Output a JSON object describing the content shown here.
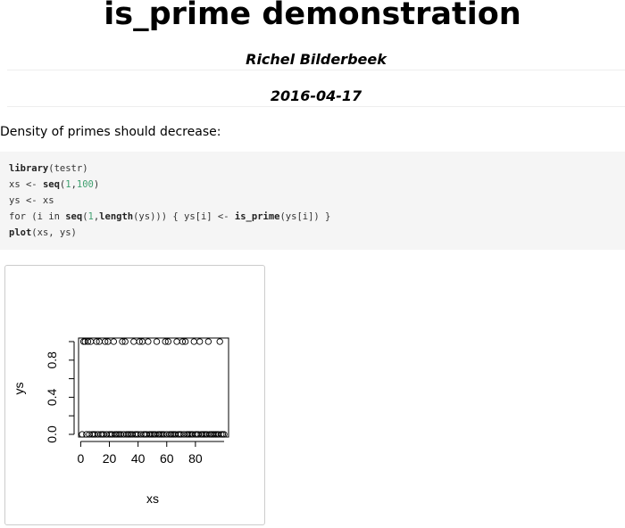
{
  "header": {
    "title": "is_prime demonstration",
    "author": "Richel Bilderbeek",
    "date": "2016-04-17"
  },
  "intro_text": "Density of primes should decrease:",
  "code_lines": [
    "library(testr)",
    "xs <- seq(1,100)",
    "ys <- xs",
    "for (i in seq(1,length(ys))) { ys[i] <- is_prime(ys[i]) }",
    "plot(xs, ys)"
  ],
  "chart_data": {
    "type": "scatter",
    "xlabel": "xs",
    "ylabel": "ys",
    "xlim": [
      1,
      100
    ],
    "ylim": [
      0,
      1
    ],
    "x_ticks": [
      "0",
      "20",
      "40",
      "60",
      "80"
    ],
    "y_ticks": [
      "0.0",
      "0.4",
      "0.8"
    ],
    "primes": [
      2,
      3,
      5,
      7,
      11,
      13,
      17,
      19,
      23,
      29,
      31,
      37,
      41,
      43,
      47,
      53,
      59,
      61,
      67,
      71,
      73,
      79,
      83,
      89,
      97
    ],
    "x": "1..100",
    "y": "1 if x is prime else 0"
  }
}
